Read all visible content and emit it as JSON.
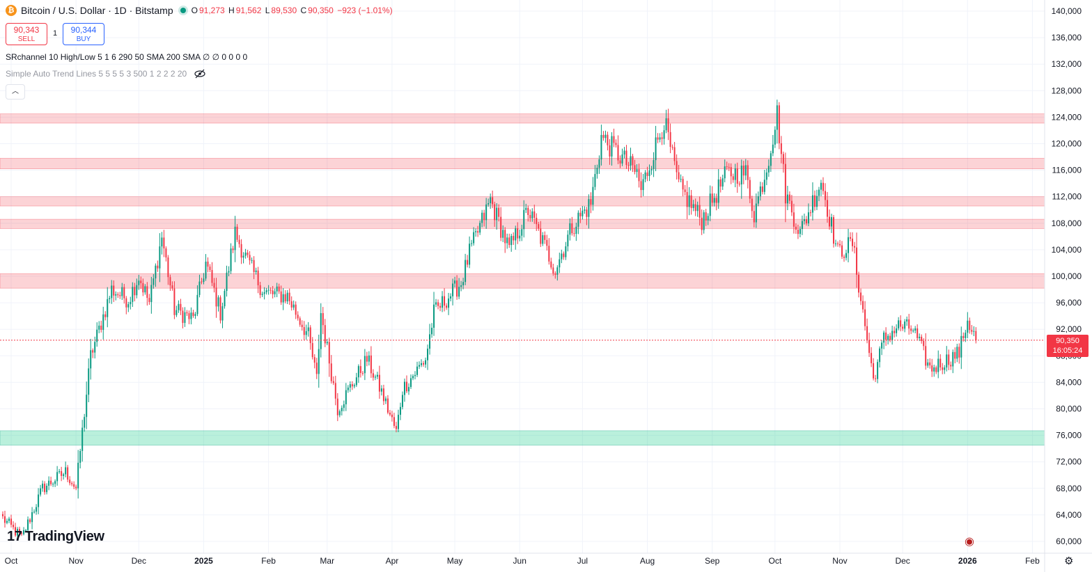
{
  "header": {
    "symbol_title": "Bitcoin / U.S. Dollar · 1D · Bitstamp",
    "open_label": "O",
    "open": "91,273",
    "high_label": "H",
    "high": "91,562",
    "low_label": "L",
    "low": "89,530",
    "close_label": "C",
    "close": "90,350",
    "change": "−923 (−1.01%)"
  },
  "trade": {
    "sell_price": "90,343",
    "sell_label": "SELL",
    "spread": "1",
    "buy_price": "90,344",
    "buy_label": "BUY"
  },
  "indicators": {
    "srchannel": "SRchannel 10 High/Low 5 1 6 290 50 SMA 200 SMA  ∅ ∅ 0 0 0 0",
    "trendlines": "Simple Auto Trend Lines 5 5 5 5 3 500 1 2 2 2 20"
  },
  "price_tag": {
    "price": "90,350",
    "countdown": "16:05:24"
  },
  "branding": "TradingView",
  "icons": [
    "bitcoin-icon",
    "live-status-icon",
    "eye-off-icon",
    "chevron-up-icon",
    "gear-icon",
    "calendar-flag-icon"
  ],
  "colors": {
    "up": "#089981",
    "down": "#f23645",
    "resistance_zone": "#f7a1a8",
    "support_zone": "#6fe0b5"
  },
  "chart_data": {
    "type": "candlestick",
    "y_axis_ticks": [
      60000,
      64000,
      68000,
      72000,
      76000,
      80000,
      84000,
      88000,
      92000,
      96000,
      100000,
      104000,
      108000,
      112000,
      116000,
      120000,
      124000,
      128000,
      132000,
      136000,
      140000
    ],
    "y_range": [
      58000,
      141500
    ],
    "x_axis_labels": [
      "Oct",
      "Nov",
      "Dec",
      "2025",
      "Feb",
      "Mar",
      "Apr",
      "May",
      "Jun",
      "Jul",
      "Aug",
      "Sep",
      "Oct",
      "Nov",
      "Dec",
      "2026",
      "Feb"
    ],
    "x_range": [
      "2024-10-01",
      "2026-02-26"
    ],
    "current_price": 90350,
    "resistance_zones": [
      [
        123100,
        124500
      ],
      [
        116200,
        117800
      ],
      [
        110600,
        112000
      ],
      [
        107200,
        108600
      ],
      [
        98200,
        100400
      ]
    ],
    "support_zones": [
      [
        74500,
        76700
      ]
    ],
    "price_path": [
      [
        "2024-10-01",
        63500
      ],
      [
        "2024-10-10",
        60500
      ],
      [
        "2024-10-20",
        68000
      ],
      [
        "2024-10-31",
        70500
      ],
      [
        "2024-11-05",
        68000
      ],
      [
        "2024-11-12",
        88000
      ],
      [
        "2024-11-22",
        98000
      ],
      [
        "2024-11-30",
        96500
      ],
      [
        "2024-12-05",
        100000
      ],
      [
        "2024-12-10",
        96000
      ],
      [
        "2024-12-16",
        106000
      ],
      [
        "2024-12-22",
        95000
      ],
      [
        "2024-12-31",
        93500
      ],
      [
        "2025-01-06",
        102000
      ],
      [
        "2025-01-13",
        94500
      ],
      [
        "2025-01-20",
        106500
      ],
      [
        "2025-01-27",
        101500
      ],
      [
        "2025-02-03",
        97500
      ],
      [
        "2025-02-14",
        97000
      ],
      [
        "2025-02-24",
        91000
      ],
      [
        "2025-02-28",
        84500
      ],
      [
        "2025-03-02",
        94500
      ],
      [
        "2025-03-10",
        80000
      ],
      [
        "2025-03-24",
        87500
      ],
      [
        "2025-03-31",
        82500
      ],
      [
        "2025-04-07",
        76500
      ],
      [
        "2025-04-10",
        83000
      ],
      [
        "2025-04-21",
        87500
      ],
      [
        "2025-04-25",
        94500
      ],
      [
        "2025-05-08",
        99000
      ],
      [
        "2025-05-12",
        103500
      ],
      [
        "2025-05-22",
        111500
      ],
      [
        "2025-05-31",
        104000
      ],
      [
        "2025-06-09",
        110000
      ],
      [
        "2025-06-22",
        101000
      ],
      [
        "2025-06-30",
        107500
      ],
      [
        "2025-07-09",
        111000
      ],
      [
        "2025-07-14",
        121000
      ],
      [
        "2025-07-31",
        115500
      ],
      [
        "2025-08-02",
        113000
      ],
      [
        "2025-08-13",
        123500
      ],
      [
        "2025-08-20",
        113500
      ],
      [
        "2025-08-31",
        108500
      ],
      [
        "2025-09-12",
        115500
      ],
      [
        "2025-09-21",
        115500
      ],
      [
        "2025-09-25",
        109500
      ],
      [
        "2025-10-01",
        116500
      ],
      [
        "2025-10-06",
        124500
      ],
      [
        "2025-10-10",
        112500
      ],
      [
        "2025-10-17",
        106500
      ],
      [
        "2025-10-27",
        114500
      ],
      [
        "2025-11-04",
        103500
      ],
      [
        "2025-11-11",
        105000
      ],
      [
        "2025-11-17",
        92500
      ],
      [
        "2025-11-21",
        84500
      ],
      [
        "2025-11-26",
        90500
      ],
      [
        "2025-12-03",
        92500
      ],
      [
        "2025-12-10",
        92000
      ],
      [
        "2025-12-18",
        86000
      ],
      [
        "2025-12-27",
        87500
      ],
      [
        "2026-01-01",
        88500
      ],
      [
        "2026-01-05",
        93500
      ],
      [
        "2026-01-09",
        90350
      ]
    ]
  }
}
